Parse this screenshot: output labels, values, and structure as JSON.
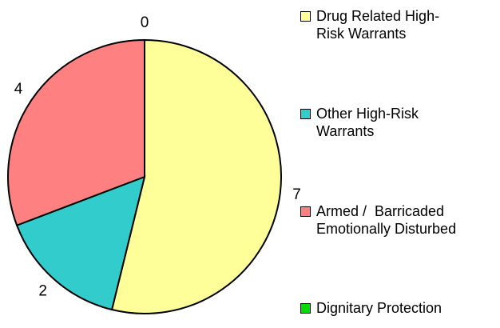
{
  "chart_data": {
    "type": "pie",
    "categories": [
      "Drug Related High-Risk Warrants",
      "Other High-Risk Warrants",
      "Armed /  Barricaded Emotionally Disturbed",
      "Dignitary Protection"
    ],
    "values": [
      7,
      2,
      4,
      0
    ],
    "colors": [
      "#ffff99",
      "#33cccc",
      "#ff8080",
      "#00dd00"
    ],
    "legend": "right"
  }
}
